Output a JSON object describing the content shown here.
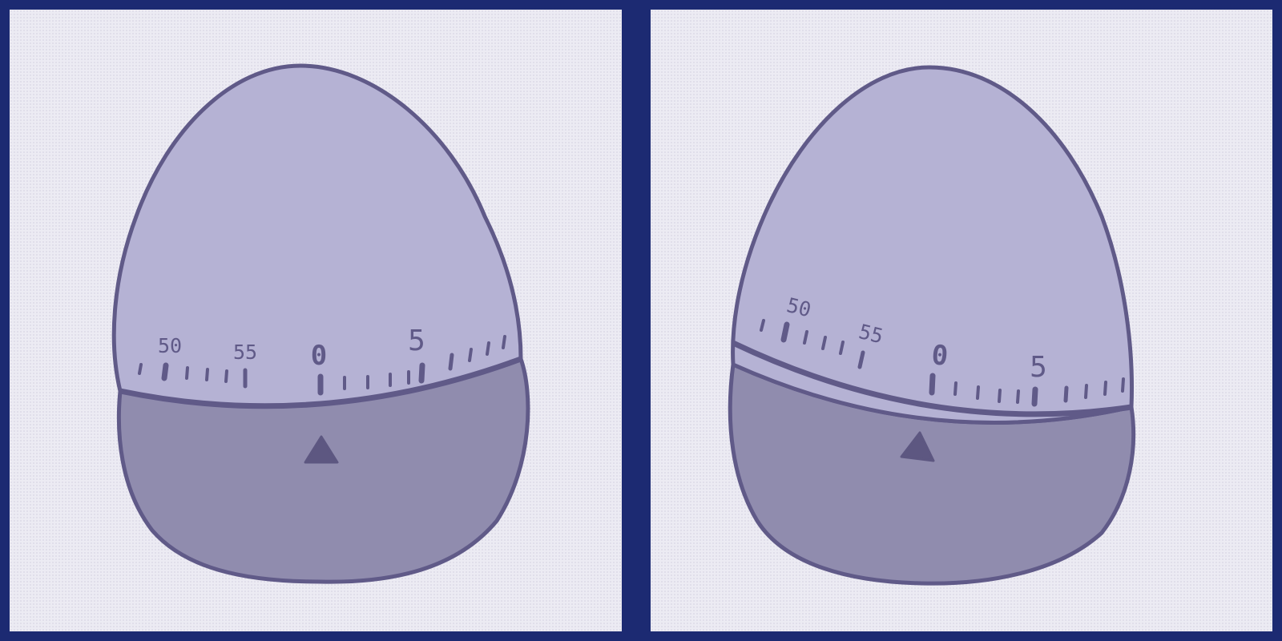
{
  "colors": {
    "frame": "#1c2a72",
    "background": "#ecebf3",
    "shell_top": "#b5b2d4",
    "shell_bottom": "#908cae",
    "outline": "#605a88",
    "pointer": "#5d5781"
  },
  "timers": [
    {
      "dial_labels": {
        "fifty": "50",
        "fifty_five": "55",
        "zero": "0",
        "five": "5"
      }
    },
    {
      "dial_labels": {
        "fifty": "50",
        "fifty_five": "55",
        "zero": "0",
        "five": "5"
      }
    }
  ]
}
